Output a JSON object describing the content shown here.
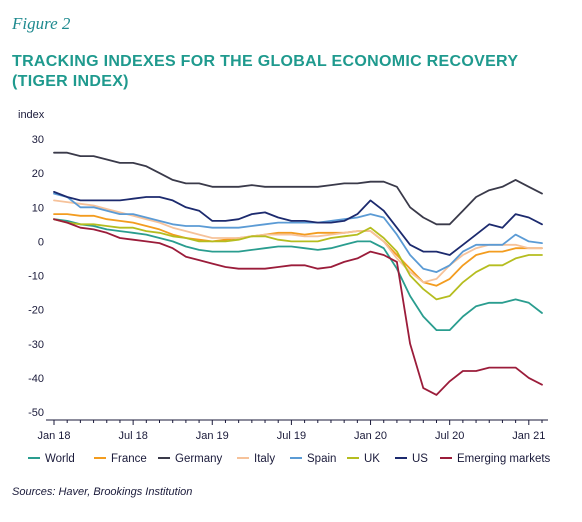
{
  "figure_label": "Figure 2",
  "title": "TRACKING INDEXES FOR THE GLOBAL ECONOMIC RECOVERY (TIGER INDEX)",
  "source": "Sources: Haver, Brookings Institution",
  "chart_data": {
    "type": "line",
    "ylabel": "index",
    "xlabel": "",
    "ylim": [
      -50,
      30
    ],
    "yticks": [
      30,
      20,
      10,
      0,
      -10,
      -20,
      -30,
      -40,
      -50
    ],
    "x_tick_labels": [
      "Jan 18",
      "Jul 18",
      "Jan 19",
      "Jul 19",
      "Jan 20",
      "Jul 20",
      "Jan 21"
    ],
    "x_tick_index": [
      0,
      6,
      12,
      18,
      24,
      30,
      36
    ],
    "n_points": 38,
    "grid": false,
    "legend_position": "bottom",
    "series": [
      {
        "name": "World",
        "color": "#2a9d8f",
        "values": [
          6.5,
          6,
          5,
          4.5,
          3.5,
          3,
          2.5,
          2,
          1,
          0,
          -1.5,
          -2.5,
          -3,
          -3,
          -3,
          -2.5,
          -2,
          -1.5,
          -1.5,
          -2,
          -2.5,
          -2,
          -1,
          0,
          0,
          -2,
          -8,
          -16,
          -22,
          -26,
          -26,
          -22,
          -19,
          -18,
          -18,
          -17,
          -18,
          -21
        ]
      },
      {
        "name": "France",
        "color": "#f39c1f",
        "values": [
          8,
          8,
          7.5,
          7.5,
          6.5,
          6,
          5.5,
          4.5,
          3.5,
          2,
          1,
          0.5,
          0,
          0.5,
          1,
          1.5,
          2,
          2.5,
          2.5,
          2,
          2.5,
          2.5,
          2.5,
          3,
          3,
          0,
          -4,
          -8,
          -12,
          -13,
          -11,
          -7,
          -4,
          -3,
          -3,
          -2,
          -2,
          -2
        ]
      },
      {
        "name": "Germany",
        "color": "#3a3a4a",
        "values": [
          26,
          26,
          25,
          25,
          24,
          23,
          23,
          22,
          20,
          18,
          17,
          17,
          16,
          16,
          16,
          16.5,
          16,
          16,
          16,
          16,
          16,
          16.5,
          17,
          17,
          17.5,
          17.5,
          16,
          10,
          7,
          5,
          5,
          9,
          13,
          15,
          16,
          18,
          16,
          14
        ]
      },
      {
        "name": "Italy",
        "color": "#f6c29a",
        "values": [
          12,
          11.5,
          11,
          10.5,
          9.5,
          8.5,
          7.5,
          6.5,
          5.5,
          4,
          3,
          2,
          1,
          1,
          1,
          1.5,
          2,
          2,
          2,
          1.5,
          1.5,
          2,
          2.5,
          3,
          3,
          0,
          -5,
          -9,
          -12,
          -11,
          -7,
          -4,
          -2,
          -1,
          -1,
          -1,
          -2,
          -2
        ]
      },
      {
        "name": "Spain",
        "color": "#5b9bd5",
        "values": [
          14,
          13,
          10,
          10,
          9,
          8,
          8,
          7,
          6,
          5,
          4.5,
          4.5,
          4,
          4,
          4,
          4.5,
          5,
          5.5,
          5.5,
          5.5,
          5.5,
          6,
          6.5,
          7,
          8,
          7,
          2,
          -4,
          -8,
          -9,
          -7,
          -3,
          -1,
          -1,
          -1,
          2,
          0,
          -0.5
        ]
      },
      {
        "name": "UK",
        "color": "#b5bd1f",
        "values": [
          6.5,
          5.5,
          5,
          5,
          4.5,
          4,
          4,
          3,
          2.5,
          1.5,
          1,
          0,
          0,
          0,
          0.5,
          1.5,
          1.5,
          0.5,
          0,
          0,
          0,
          1,
          1.5,
          2,
          4,
          1,
          -3,
          -10,
          -14,
          -17,
          -16,
          -12,
          -9,
          -7,
          -7,
          -5,
          -4,
          -4
        ]
      },
      {
        "name": "US",
        "color": "#1c2a6e",
        "values": [
          14.5,
          13,
          12,
          12,
          12,
          12,
          12.5,
          13,
          13,
          12,
          10,
          9,
          6,
          6,
          6.5,
          8,
          8.5,
          7,
          6,
          6,
          5.5,
          5.5,
          6,
          8,
          12,
          9,
          4,
          -1,
          -3,
          -3,
          -4,
          -1,
          2,
          5,
          4,
          8,
          7,
          5
        ]
      },
      {
        "name": "Emerging markets",
        "color": "#9b1c3a",
        "values": [
          6.5,
          5.5,
          4,
          3.5,
          2.5,
          1,
          0.5,
          0,
          -0.5,
          -2,
          -4.5,
          -5.5,
          -6.5,
          -7.5,
          -8,
          -8,
          -8,
          -7.5,
          -7,
          -7,
          -8,
          -7.5,
          -6,
          -5,
          -3,
          -4,
          -6,
          -30,
          -43,
          -45,
          -41,
          -38,
          -38,
          -37,
          -37,
          -37,
          -40,
          -42
        ]
      }
    ]
  }
}
